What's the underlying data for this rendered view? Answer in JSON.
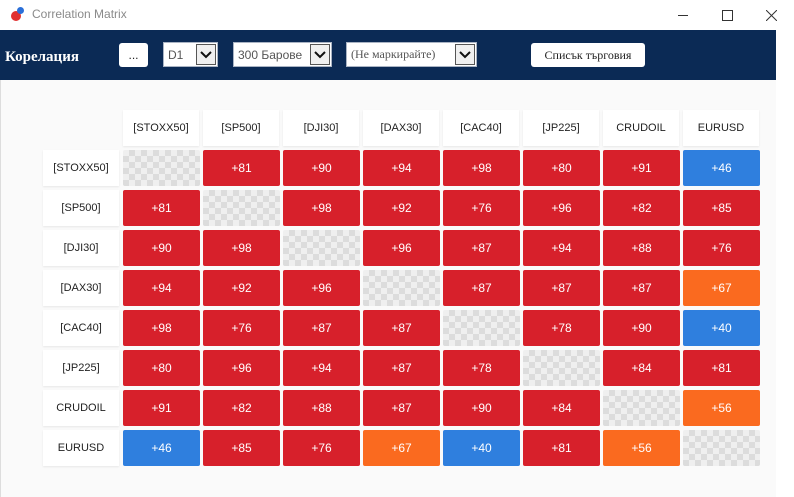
{
  "window": {
    "title": "Correlation Matrix"
  },
  "toolbar": {
    "brand": "Корелация",
    "dots_label": "...",
    "timeframe": "D1",
    "bars": "300 Барове",
    "mark": "(Не маркирайте)",
    "list_label": "Списък търговия"
  },
  "colors": {
    "strong_positive": "#d7202b",
    "medium_positive": "#fa6a1f",
    "weak_positive": "#2f7fde",
    "toolbar_bg": "#0b2a55"
  },
  "matrix": {
    "symbols": [
      "[STOXX50]",
      "[SP500]",
      "[DJI30]",
      "[DAX30]",
      "[CAC40]",
      "[JP225]",
      "CRUDOIL",
      "EURUSD"
    ],
    "values": [
      [
        "",
        "+81",
        "+90",
        "+94",
        "+98",
        "+80",
        "+91",
        "+46"
      ],
      [
        "+81",
        "",
        "+98",
        "+92",
        "+76",
        "+96",
        "+82",
        "+85"
      ],
      [
        "+90",
        "+98",
        "",
        "+96",
        "+87",
        "+94",
        "+88",
        "+76"
      ],
      [
        "+94",
        "+92",
        "+96",
        "",
        "+87",
        "+87",
        "+87",
        "+67"
      ],
      [
        "+98",
        "+76",
        "+87",
        "+87",
        "",
        "+78",
        "+90",
        "+40"
      ],
      [
        "+80",
        "+96",
        "+94",
        "+87",
        "+78",
        "",
        "+84",
        "+81"
      ],
      [
        "+91",
        "+82",
        "+88",
        "+87",
        "+90",
        "+84",
        "",
        "+56"
      ],
      [
        "+46",
        "+85",
        "+76",
        "+67",
        "+40",
        "+81",
        "+56",
        ""
      ]
    ],
    "levels": [
      [
        "diag",
        "strong",
        "strong",
        "strong",
        "strong",
        "strong",
        "strong",
        "weak"
      ],
      [
        "strong",
        "diag",
        "strong",
        "strong",
        "strong",
        "strong",
        "strong",
        "strong"
      ],
      [
        "strong",
        "strong",
        "diag",
        "strong",
        "strong",
        "strong",
        "strong",
        "strong"
      ],
      [
        "strong",
        "strong",
        "strong",
        "diag",
        "strong",
        "strong",
        "strong",
        "medium"
      ],
      [
        "strong",
        "strong",
        "strong",
        "strong",
        "diag",
        "strong",
        "strong",
        "weak"
      ],
      [
        "strong",
        "strong",
        "strong",
        "strong",
        "strong",
        "diag",
        "strong",
        "strong"
      ],
      [
        "strong",
        "strong",
        "strong",
        "strong",
        "strong",
        "strong",
        "diag",
        "medium"
      ],
      [
        "weak",
        "strong",
        "strong",
        "medium",
        "weak",
        "strong",
        "medium",
        "diag"
      ]
    ]
  }
}
